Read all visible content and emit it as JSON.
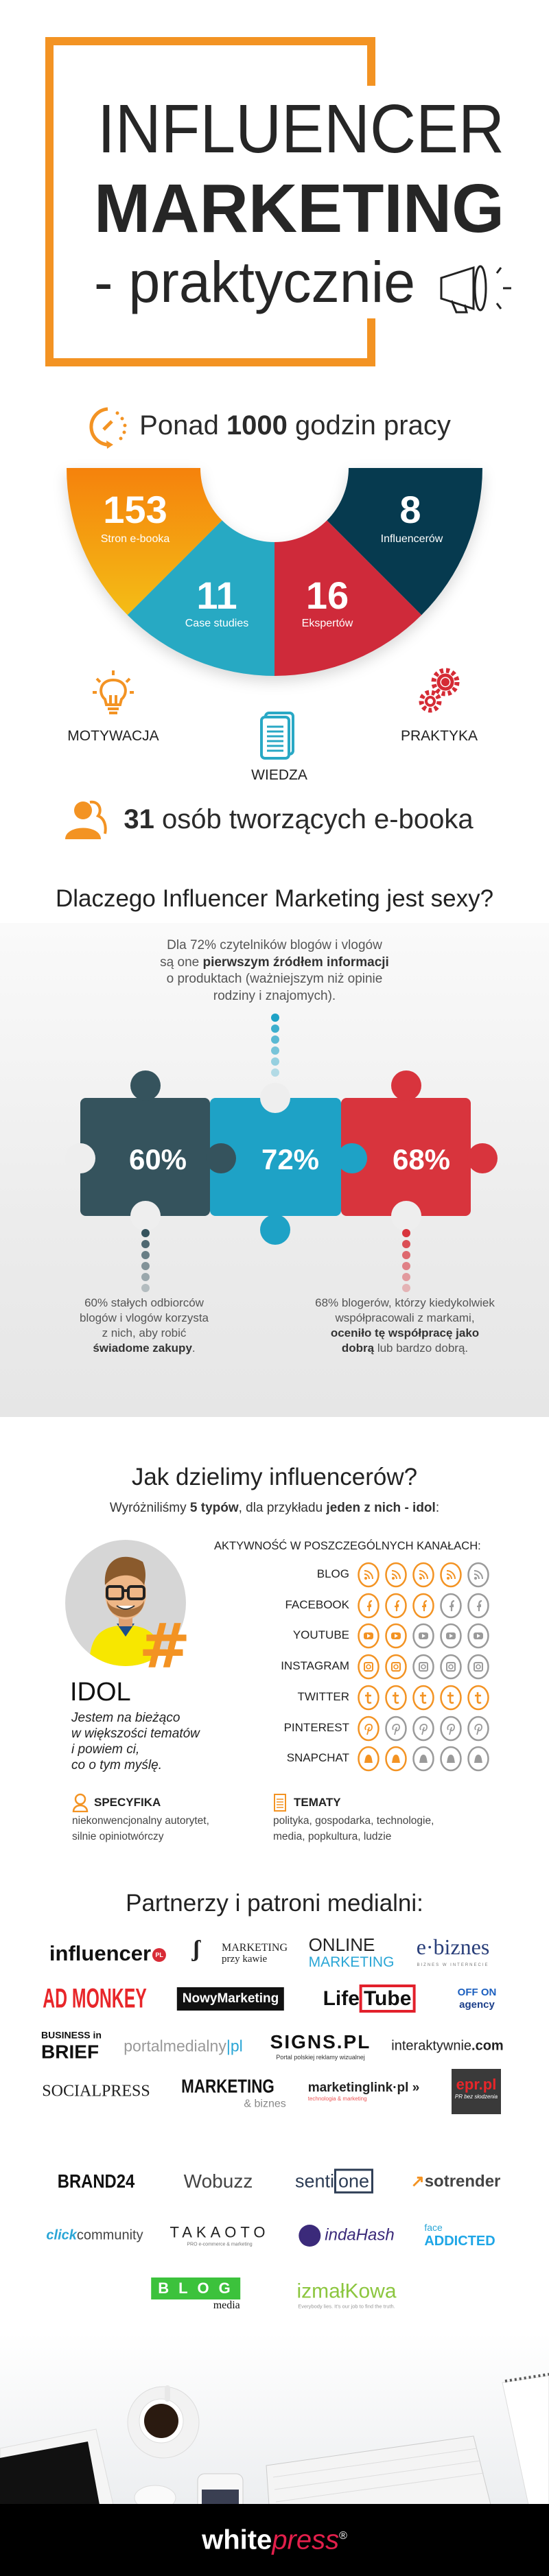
{
  "header": {
    "line1": "INFLUENCER",
    "line2": "MARKETING",
    "line3": "- praktycznie",
    "accent": "#f39323",
    "icon": "megaphone-icon"
  },
  "hours": {
    "prefix": "Ponad ",
    "number": "1000",
    "suffix": " godzin pracy",
    "icon": "clock-icon"
  },
  "stats": [
    {
      "value": "153",
      "label": "Stron e-booka",
      "color": "#f5900f"
    },
    {
      "value": "11",
      "label": "Case studies",
      "color": "#27a9c3"
    },
    {
      "value": "16",
      "label": "Ekspertów",
      "color": "#cf2a3a"
    },
    {
      "value": "8",
      "label": "Influencerów",
      "color": "#063a4f"
    }
  ],
  "pillars": {
    "motivation": "MOTYWACJA",
    "knowledge": "WIEDZA",
    "practice": "PRAKTYKA"
  },
  "people": {
    "number": "31",
    "text": " osób tworzących e-booka",
    "icon": "people-icon"
  },
  "why": {
    "heading": "Dlaczego Influencer Marketing jest sexy?",
    "intro": {
      "l1": "Dla 72% czytelników blogów i vlogów",
      "l2a": "są one ",
      "l2b": "pierwszym źródłem informacji",
      "l3": "o produktach (ważniejszym niż opinie",
      "l4": "rodziny i znajomych)."
    },
    "puzzle": [
      {
        "value": "60%",
        "color": "#35535d"
      },
      {
        "value": "72%",
        "color": "#1ea2c6"
      },
      {
        "value": "68%",
        "color": "#d8343d"
      }
    ],
    "left": {
      "l1": "60% stałych odbiorców",
      "l2": "blogów i vlogów korzysta",
      "l3": "z nich, aby robić",
      "l4b": "świadome zakupy",
      "l4": "."
    },
    "right": {
      "l1": "68% blogerów, którzy kiedykolwiek",
      "l2": "współpracowali z markami,",
      "l3b": "oceniło tę współpracę jako",
      "l4b": "dobrą",
      "l4": " lub bardzo dobrą."
    }
  },
  "types": {
    "heading": "Jak dzielimy influencerów?",
    "sub": {
      "a": "Wyróżniliśmy ",
      "b": "5 typów",
      "c": ", dla przykładu ",
      "d": "jeden z nich - idol",
      "e": ":"
    },
    "activity_label": "AKTYWNOŚĆ W POSZCZEGÓLNYCH KANAŁACH:",
    "scale_max": 5,
    "channels": [
      {
        "name": "BLOG",
        "icon": "rss",
        "level": 4
      },
      {
        "name": "FACEBOOK",
        "icon": "facebook",
        "level": 3
      },
      {
        "name": "YOUTUBE",
        "icon": "youtube",
        "level": 2
      },
      {
        "name": "INSTAGRAM",
        "icon": "instagram",
        "level": 2
      },
      {
        "name": "TWITTER",
        "icon": "twitter",
        "level": 5
      },
      {
        "name": "PINTEREST",
        "icon": "pinterest",
        "level": 1
      },
      {
        "name": "SNAPCHAT",
        "icon": "snapchat",
        "level": 2
      }
    ],
    "active_color": "#f39323",
    "inactive_color": "#9a9a9a",
    "idol": {
      "name": "IDOL",
      "q1": "Jestem na bieżąco",
      "q2": "w większości tematów",
      "q3": "i powiem ci,",
      "q4": "co o tym myślę.",
      "badge": "#"
    },
    "specyfika": {
      "title": "SPECYFIKA",
      "l1": "niekonwencjonalny autorytet,",
      "l2": "silnie opiniotwórczy"
    },
    "tematy": {
      "title": "TEMATY",
      "l1": "polityka, gospodarka, technologie,",
      "l2": "media, popkultura, ludzie"
    }
  },
  "partners": {
    "heading": "Partnerzy i patroni medialni:",
    "logos": [
      {
        "name": "influencer",
        "text": "influencer",
        "extra": "PL"
      },
      {
        "name": "marketing-przy-kawie",
        "text": "MARKETING",
        "extra": "przy kawie"
      },
      {
        "name": "online-marketing",
        "text": "ONLINE",
        "extra": "MARKETING"
      },
      {
        "name": "e-biznes",
        "text": "e·biznes",
        "extra": "BIZNES W INTERNECIE"
      },
      {
        "name": "ad-monkey",
        "text": "AD MONKEY"
      },
      {
        "name": "nowy-marketing",
        "text": "NowyMarketing"
      },
      {
        "name": "lifetube",
        "text": "Life",
        "extra": "Tube"
      },
      {
        "name": "offon-agency",
        "text": "OFF ON",
        "extra": "agency"
      },
      {
        "name": "business-in-brief",
        "text": "BUSINESS in",
        "extra": "BRIEF"
      },
      {
        "name": "portalmedialny",
        "text": "portalmedialny",
        "extra": "pl"
      },
      {
        "name": "signs",
        "text": "SIGNS.PL",
        "extra": "Portal polskiej reklamy wizualnej"
      },
      {
        "name": "interaktywnie",
        "text": "interaktywnie",
        "extra": ".com"
      },
      {
        "name": "socialpress",
        "text": "SOCIALPRESS"
      },
      {
        "name": "marketing-biznes",
        "text": "MARKETING",
        "extra": "& biznes"
      },
      {
        "name": "marketinglink",
        "text": "marketinglink·pl »",
        "extra": "technologia & marketing"
      },
      {
        "name": "epr",
        "text": "epr.pl",
        "extra": "PR bez słodzenia"
      },
      {
        "name": "brand24",
        "text": "BRAND24"
      },
      {
        "name": "wobuzz",
        "text": "Wobuzz"
      },
      {
        "name": "sentione",
        "text": "senti",
        "extra": "one"
      },
      {
        "name": "sotrender",
        "text": "sotrender"
      },
      {
        "name": "clickcommunity",
        "text": "click",
        "extra": "community"
      },
      {
        "name": "takaoto",
        "text": "TAKAOTO",
        "extra": "PRO e-commerce & marketing"
      },
      {
        "name": "indahash",
        "text": "indaHash"
      },
      {
        "name": "faceaddicted",
        "text": "face",
        "extra": "ADDICTED"
      },
      {
        "name": "blog-media",
        "text": "BLOG",
        "extra": "media"
      },
      {
        "name": "izmalkowa",
        "text": "izmałKowa",
        "extra": "Everybody lies. It's our job to find the truth."
      }
    ]
  },
  "footer": {
    "brand_a": "white",
    "brand_b": "press",
    "reg": "®",
    "brand_color": "#e21f4b"
  }
}
